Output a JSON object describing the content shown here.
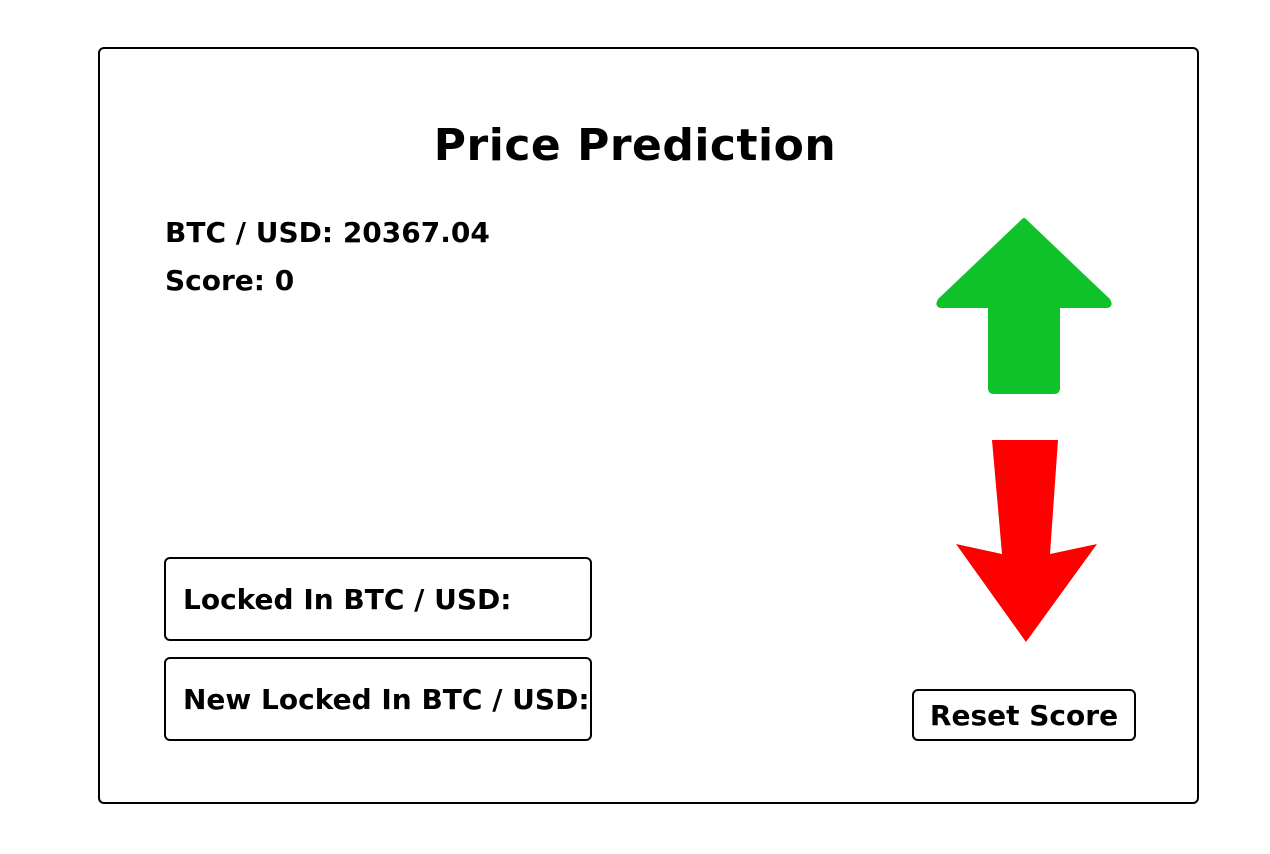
{
  "title": "Price Prediction",
  "price": {
    "label": "BTC / USD:",
    "value": "20367.04"
  },
  "score": {
    "label": "Score:",
    "value": "0"
  },
  "locked_in": {
    "label": "Locked In BTC / USD:",
    "value": ""
  },
  "new_locked_in": {
    "label": "New Locked In BTC / USD:",
    "value": ""
  },
  "controls": {
    "up_icon": "arrow-up-icon",
    "down_icon": "arrow-down-icon",
    "reset_label": "Reset Score"
  },
  "colors": {
    "up_arrow": "#10c22a",
    "down_arrow": "#ff0000",
    "border": "#000000",
    "background": "#ffffff"
  }
}
